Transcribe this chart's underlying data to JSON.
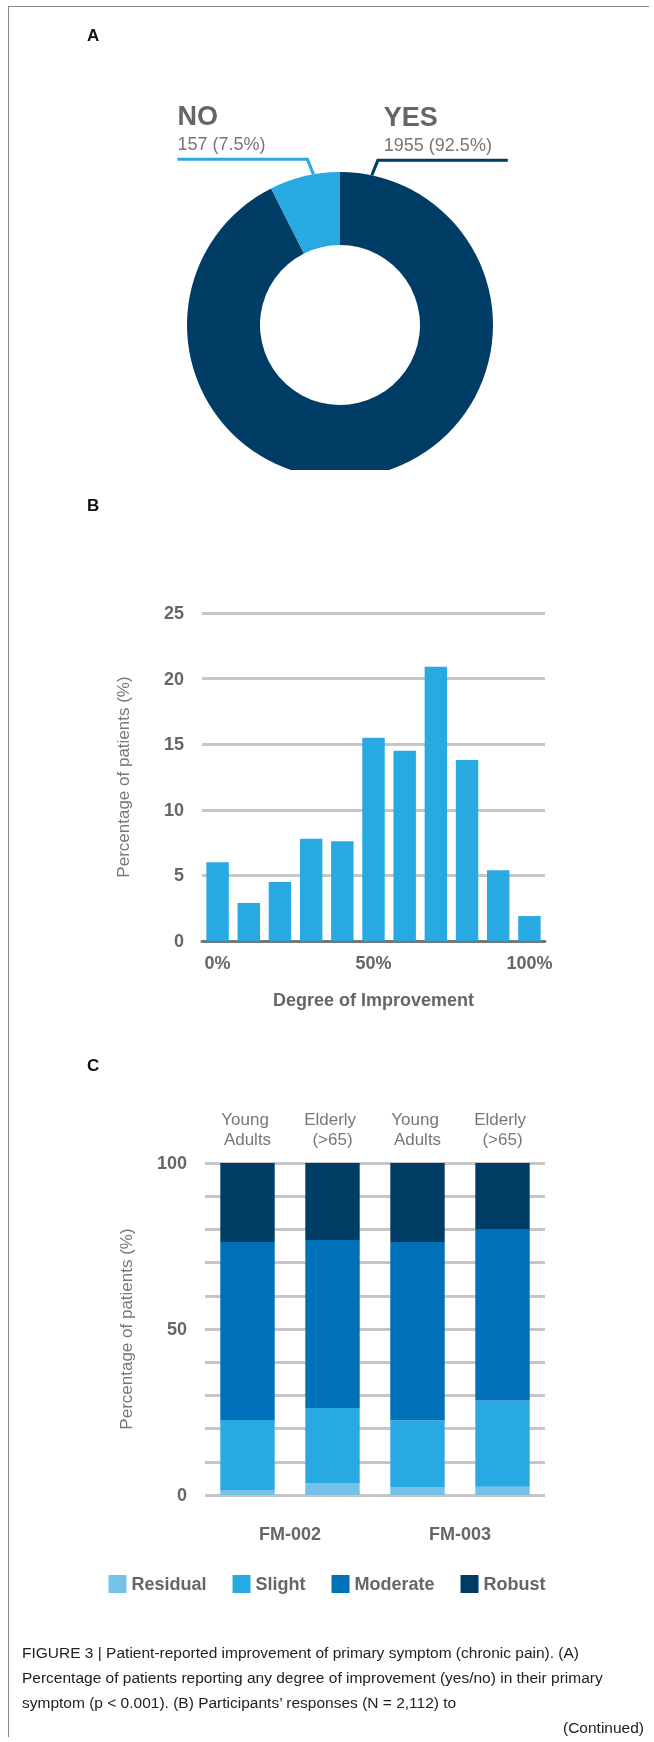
{
  "chart_data": [
    {
      "type": "donut",
      "title": "A",
      "categories": [
        "YES",
        "NO"
      ],
      "values": [
        1955,
        157
      ],
      "colors": [
        "#003d66",
        "#29a9e1"
      ],
      "value_labels": [
        "1955 (92.5%)",
        "157 (7.5%)"
      ],
      "legend": false
    },
    {
      "type": "bar",
      "title": "B",
      "xlabel": "Degree of Improvement",
      "ylabel": "Percentage of patients (%)",
      "categories": [
        "0%",
        null,
        null,
        null,
        null,
        "50%",
        null,
        null,
        null,
        null,
        "100%"
      ],
      "values": [
        6.0,
        2.9,
        4.5,
        7.8,
        7.6,
        15.5,
        14.5,
        20.9,
        13.8,
        5.4,
        1.9
      ],
      "color": "#29a9e1",
      "ylim": [
        0,
        25
      ],
      "yticks": [
        0,
        5,
        10,
        15,
        20,
        25
      ],
      "grid": "y",
      "legend": false
    },
    {
      "type": "bar",
      "title": "C",
      "ylabel": "Percentage of patients (%)",
      "categories": [
        "Young Adults",
        "Elderly (>65)",
        "Young Adults",
        "Elderly (>65)"
      ],
      "stacked": true,
      "series": [
        {
          "name": "Residual",
          "color": "#74c2e8",
          "values": [
            1.5,
            3.5,
            2.4,
            2.5
          ]
        },
        {
          "name": "Slight",
          "color": "#29a9e1",
          "values": [
            21.1,
            22.7,
            20.1,
            26.0
          ]
        },
        {
          "name": "Moderate",
          "color": "#0070b8",
          "values": [
            53.6,
            50.6,
            53.7,
            51.6
          ]
        },
        {
          "name": "Robust",
          "color": "#003d66",
          "values": [
            23.8,
            23.2,
            23.8,
            19.9
          ]
        }
      ],
      "ylim": [
        0,
        100
      ],
      "yticks": [
        0,
        {
          "value": 10,
          "label": null
        },
        {
          "value": 20,
          "label": null
        },
        {
          "value": 30,
          "label": null
        },
        {
          "value": 40,
          "label": null
        },
        50,
        {
          "value": 60,
          "label": null
        },
        {
          "value": 70,
          "label": null
        },
        {
          "value": 80,
          "label": null
        },
        {
          "value": 90,
          "label": null
        },
        100
      ],
      "grid": "y",
      "legend": "bottom",
      "annotations": [
        "FM-002",
        "FM-003"
      ]
    },
    {
      "type": "other",
      "annotations": [
        "FIGURE 3 | Patient-reported improvement of primary symptom (chronic pain). (A) Percentage of patients reporting any degree of improvement (yes/no) in their primary symptom (p < 0.001). (B) Participants’ responses (N = 2,112) to",
        "(Continued)"
      ]
    }
  ]
}
